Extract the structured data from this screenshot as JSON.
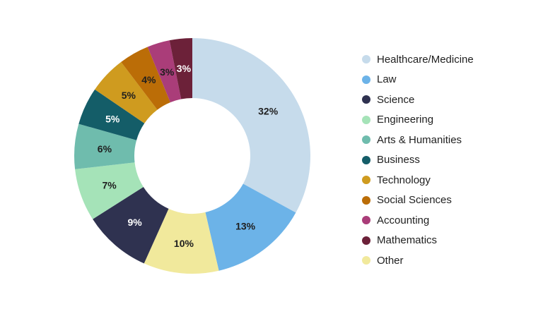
{
  "chart_data": {
    "type": "pie",
    "donut": true,
    "title": "",
    "legend_position": "right",
    "categories": [
      "Healthcare/Medicine",
      "Law",
      "Science",
      "Engineering",
      "Arts & Humanities",
      "Business",
      "Technology",
      "Social Sciences",
      "Accounting",
      "Mathematics",
      "Other"
    ],
    "values": [
      32,
      13,
      9,
      7,
      6,
      5,
      5,
      4,
      3,
      3,
      10
    ],
    "labels": [
      "32%",
      "13%",
      "9%",
      "7%",
      "6%",
      "5%",
      "5%",
      "4%",
      "3%",
      "3%",
      "10%"
    ],
    "colors": [
      "#c6dbeb",
      "#6cb3e8",
      "#2f3250",
      "#a5e3b8",
      "#6fbcad",
      "#145d68",
      "#cf9b1f",
      "#bb6d07",
      "#aa3d79",
      "#6c2139",
      "#f1e99c"
    ],
    "label_colors": [
      "#1f1f1f",
      "#1f1f1f",
      "#ffffff",
      "#1f1f1f",
      "#1f1f1f",
      "#ffffff",
      "#1f1f1f",
      "#1f1f1f",
      "#1f1f1f",
      "#ffffff",
      "#1f1f1f"
    ],
    "clockwise_order": [
      "Healthcare/Medicine",
      "Law",
      "Other",
      "Science",
      "Engineering",
      "Arts & Humanities",
      "Business",
      "Technology",
      "Social Sciences",
      "Accounting",
      "Mathematics"
    ]
  }
}
